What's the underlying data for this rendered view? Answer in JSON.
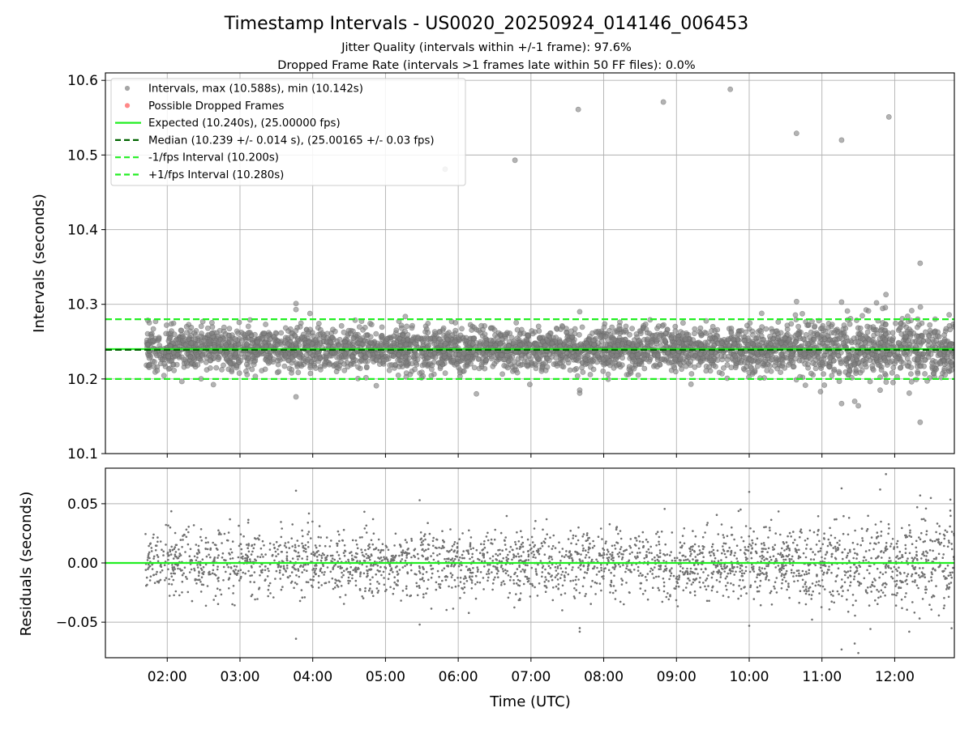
{
  "chart_data": {
    "title": "Timestamp Intervals - US0020_20250924_014146_006453",
    "subtitle_lines": [
      "Jitter Quality (intervals within +/-1 frame): 97.6%",
      "Dropped Frame Rate (intervals >1 frames late within 50 FF files): 0.0%"
    ],
    "xlabel": "Time (UTC)",
    "x_ticks": [
      "02:00",
      "03:00",
      "04:00",
      "05:00",
      "06:00",
      "07:00",
      "08:00",
      "09:00",
      "10:00",
      "11:00",
      "12:00"
    ],
    "x_range_hours": [
      1.15,
      12.82
    ],
    "data_x_range_hours": [
      1.7,
      12.82
    ],
    "panels": [
      {
        "type": "scatter",
        "ylabel": "Intervals (seconds)",
        "ylim": [
          10.1,
          10.61
        ],
        "y_ticks": [
          "10.1",
          "10.2",
          "10.3",
          "10.4",
          "10.5",
          "10.6"
        ],
        "grid": true,
        "legend_position": "top-left",
        "legend": [
          {
            "label": "Intervals, max (10.588s), min (10.142s)",
            "kind": "dot",
            "color": "#808080"
          },
          {
            "label": "Possible Dropped Frames",
            "kind": "dot",
            "color": "#ff5555"
          },
          {
            "label": "Expected (10.240s), (25.00000 fps)",
            "kind": "solid",
            "color": "#22ee22"
          },
          {
            "label": "Median (10.239 +/- 0.014 s), (25.00165 +/- 0.03 fps)",
            "kind": "dashed",
            "color": "#006400"
          },
          {
            "label": "-1/fps Interval (10.200s)",
            "kind": "dashed",
            "color": "#22ee22"
          },
          {
            "label": "+1/fps Interval (10.280s)",
            "kind": "dashed",
            "color": "#22ee22"
          }
        ],
        "reference_lines": [
          {
            "name": "expected",
            "y": 10.24,
            "style": "solid",
            "color": "#22ee22"
          },
          {
            "name": "median",
            "y": 10.239,
            "style": "dashed",
            "color": "#006400"
          },
          {
            "name": "minus-one-frame",
            "y": 10.2,
            "style": "dashed",
            "color": "#22ee22"
          },
          {
            "name": "plus-one-frame",
            "y": 10.28,
            "style": "dashed",
            "color": "#22ee22"
          }
        ],
        "dense_band": {
          "center": 10.24,
          "sd": 0.014,
          "point_count": 3800,
          "color": "#808080"
        },
        "outliers": [
          {
            "x": 5.82,
            "y": 10.481
          },
          {
            "x": 6.78,
            "y": 10.493
          },
          {
            "x": 7.65,
            "y": 10.561
          },
          {
            "x": 8.82,
            "y": 10.571
          },
          {
            "x": 9.74,
            "y": 10.588
          },
          {
            "x": 10.65,
            "y": 10.529
          },
          {
            "x": 11.27,
            "y": 10.52
          },
          {
            "x": 11.92,
            "y": 10.551
          },
          {
            "x": 12.35,
            "y": 10.355
          },
          {
            "x": 12.35,
            "y": 10.142
          },
          {
            "x": 3.77,
            "y": 10.176
          },
          {
            "x": 3.77,
            "y": 10.301
          },
          {
            "x": 3.77,
            "y": 10.293
          },
          {
            "x": 6.25,
            "y": 10.18
          },
          {
            "x": 7.67,
            "y": 10.185
          },
          {
            "x": 7.67,
            "y": 10.181
          },
          {
            "x": 7.67,
            "y": 10.29
          },
          {
            "x": 11.27,
            "y": 10.167
          },
          {
            "x": 11.45,
            "y": 10.17
          },
          {
            "x": 11.5,
            "y": 10.164
          },
          {
            "x": 11.8,
            "y": 10.185
          },
          {
            "x": 11.88,
            "y": 10.313
          },
          {
            "x": 11.75,
            "y": 10.302
          },
          {
            "x": 11.27,
            "y": 10.303
          },
          {
            "x": 11.35,
            "y": 10.291
          },
          {
            "x": 12.2,
            "y": 10.181
          },
          {
            "x": 12.55,
            "y": 10.263
          },
          {
            "x": 10.98,
            "y": 10.183
          },
          {
            "x": 9.2,
            "y": 10.193
          }
        ]
      },
      {
        "type": "scatter",
        "ylabel": "Residuals (seconds)",
        "ylim": [
          -0.08,
          0.08
        ],
        "y_ticks": [
          "−0.05",
          "0.00",
          "0.05"
        ],
        "y_tick_values": [
          -0.05,
          0.0,
          0.05
        ],
        "grid": true,
        "reference_lines": [
          {
            "name": "zero",
            "y": 0.0,
            "style": "solid",
            "color": "#22ee22"
          }
        ],
        "dense_band": {
          "center": 0.0,
          "sd": 0.014,
          "point_count": 2800,
          "color": "#707070"
        },
        "outliers": [
          {
            "x": 3.77,
            "y": 0.061
          },
          {
            "x": 3.77,
            "y": -0.064
          },
          {
            "x": 5.47,
            "y": 0.053
          },
          {
            "x": 5.47,
            "y": -0.052
          },
          {
            "x": 7.67,
            "y": -0.055
          },
          {
            "x": 7.67,
            "y": -0.058
          },
          {
            "x": 10.0,
            "y": 0.06
          },
          {
            "x": 10.0,
            "y": -0.053
          },
          {
            "x": 11.27,
            "y": 0.063
          },
          {
            "x": 11.27,
            "y": -0.073
          },
          {
            "x": 11.45,
            "y": -0.068
          },
          {
            "x": 11.5,
            "y": -0.076
          },
          {
            "x": 11.88,
            "y": 0.075
          },
          {
            "x": 11.8,
            "y": 0.062
          },
          {
            "x": 12.35,
            "y": 0.057
          },
          {
            "x": 12.2,
            "y": -0.058
          }
        ]
      }
    ]
  }
}
